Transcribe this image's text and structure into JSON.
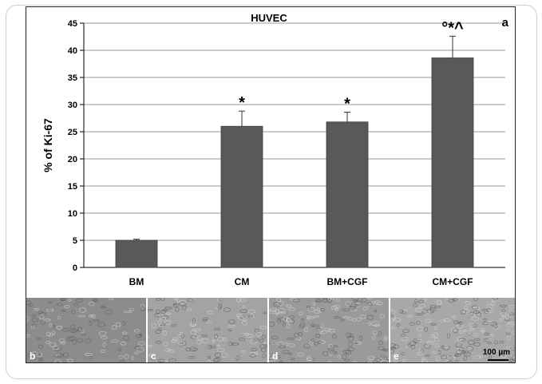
{
  "chart_data": {
    "type": "bar",
    "title": "HUVEC",
    "panel_label": "a",
    "ylabel": "% of Ki-67",
    "xlabel": "",
    "ylim": [
      0,
      45
    ],
    "yticks": [
      "0",
      "5",
      "10",
      "15",
      "20",
      "25",
      "30",
      "35",
      "40",
      "45"
    ],
    "categories": [
      "BM",
      "CM",
      "BM+CGF",
      "CM+CGF"
    ],
    "values": [
      5.0,
      26.0,
      26.8,
      38.6
    ],
    "errors": [
      0.2,
      2.8,
      1.8,
      4.0
    ],
    "annotations": [
      "",
      "*",
      "*",
      "°*^"
    ],
    "grid": true,
    "bar_color": "#595959"
  },
  "micrographs": [
    {
      "label": "b",
      "tone": "#8c8c8c"
    },
    {
      "label": "c",
      "tone": "#a3a3a3"
    },
    {
      "label": "d",
      "tone": "#9a9a9a"
    },
    {
      "label": "e",
      "tone": "#a8a8a8"
    }
  ],
  "scale_bar": "100 µm"
}
